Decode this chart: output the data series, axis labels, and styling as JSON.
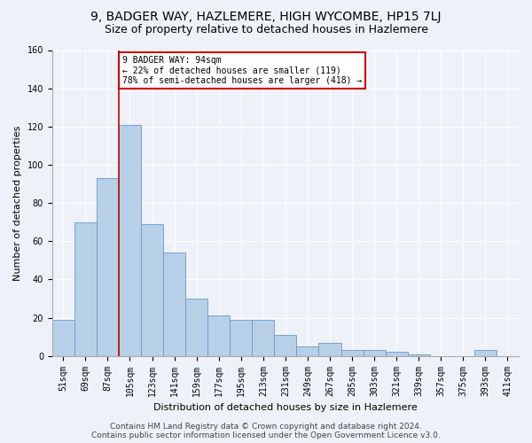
{
  "title": "9, BADGER WAY, HAZLEMERE, HIGH WYCOMBE, HP15 7LJ",
  "subtitle": "Size of property relative to detached houses in Hazlemere",
  "xlabel": "Distribution of detached houses by size in Hazlemere",
  "ylabel": "Number of detached properties",
  "bar_color": "#b8cfe8",
  "bar_edge_color": "#6699cc",
  "categories": [
    "51sqm",
    "69sqm",
    "87sqm",
    "105sqm",
    "123sqm",
    "141sqm",
    "159sqm",
    "177sqm",
    "195sqm",
    "213sqm",
    "231sqm",
    "249sqm",
    "267sqm",
    "285sqm",
    "303sqm",
    "321sqm",
    "339sqm",
    "357sqm",
    "375sqm",
    "393sqm",
    "411sqm"
  ],
  "values": [
    19,
    70,
    93,
    121,
    69,
    54,
    30,
    21,
    19,
    19,
    11,
    5,
    7,
    3,
    3,
    2,
    1,
    0,
    0,
    3,
    0
  ],
  "ylim": [
    0,
    160
  ],
  "yticks": [
    0,
    20,
    40,
    60,
    80,
    100,
    120,
    140,
    160
  ],
  "annotation_text": "9 BADGER WAY: 94sqm\n← 22% of detached houses are smaller (119)\n78% of semi-detached houses are larger (418) →",
  "annotation_box_color": "#ffffff",
  "annotation_box_edge": "#cc0000",
  "property_line_color": "#cc0000",
  "footer_line1": "Contains HM Land Registry data © Crown copyright and database right 2024.",
  "footer_line2": "Contains public sector information licensed under the Open Government Licence v3.0.",
  "bg_color": "#eef2f8",
  "grid_color": "#ffffff",
  "title_fontsize": 10,
  "subtitle_fontsize": 9,
  "axis_label_fontsize": 8,
  "tick_fontsize": 7,
  "footer_fontsize": 6.5
}
